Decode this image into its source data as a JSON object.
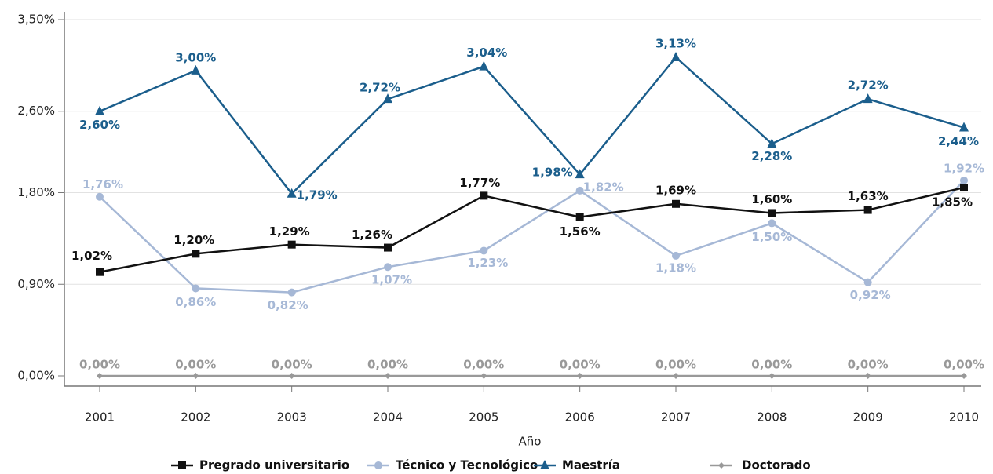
{
  "chart_data": {
    "type": "line",
    "x_label": "Año",
    "categories": [
      "2001",
      "2002",
      "2003",
      "2004",
      "2005",
      "2006",
      "2007",
      "2008",
      "2009",
      "2010"
    ],
    "ylim": [
      0,
      3.5
    ],
    "yticks": [
      {
        "value": 0,
        "label": "0,00%"
      },
      {
        "value": 0.9,
        "label": "0,90%"
      },
      {
        "value": 1.8,
        "label": "1,80%"
      },
      {
        "value": 2.6,
        "label": "2,60%"
      },
      {
        "value": 3.5,
        "label": "3,50%"
      }
    ],
    "grid": true,
    "legend": "bottom",
    "series": [
      {
        "name": "Pregrado universitario",
        "color": "#111111",
        "marker": "square",
        "values": [
          1.02,
          1.2,
          1.29,
          1.26,
          1.77,
          1.56,
          1.69,
          1.6,
          1.63,
          1.85
        ],
        "value_labels": [
          "1,02%",
          "1,20%",
          "1,29%",
          "1,26%",
          "1,77%",
          "1,56%",
          "1,69%",
          "1,60%",
          "1,63%",
          "1,85%"
        ]
      },
      {
        "name": "Técnico y Tecnológico",
        "color": "#a6b8d6",
        "marker": "circle",
        "values": [
          1.76,
          0.86,
          0.82,
          1.07,
          1.23,
          1.82,
          1.18,
          1.5,
          0.92,
          1.92
        ],
        "value_labels": [
          "1,76%",
          "0,86%",
          "0,82%",
          "1,07%",
          "1,23%",
          "1,82%",
          "1,18%",
          "1,50%",
          "0,92%",
          "1,92%"
        ]
      },
      {
        "name": "Maestría",
        "color": "#1b5e8c",
        "marker": "triangle",
        "values": [
          2.6,
          3.0,
          1.79,
          2.72,
          3.04,
          1.98,
          3.13,
          2.28,
          2.72,
          2.44
        ],
        "value_labels": [
          "2,60%",
          "3,00%",
          "1,79%",
          "2,72%",
          "3,04%",
          "1,98%",
          "3,13%",
          "2,28%",
          "2,72%",
          "2,44%"
        ]
      },
      {
        "name": "Doctorado",
        "color": "#999999",
        "marker": "diamond",
        "values": [
          0,
          0,
          0,
          0,
          0,
          0,
          0,
          0,
          0,
          0
        ],
        "value_labels": [
          "0,00%",
          "0,00%",
          "0,00%",
          "0,00%",
          "0,00%",
          "0,00%",
          "0,00%",
          "0,00%",
          "0,00%",
          "0,00%"
        ]
      }
    ]
  }
}
